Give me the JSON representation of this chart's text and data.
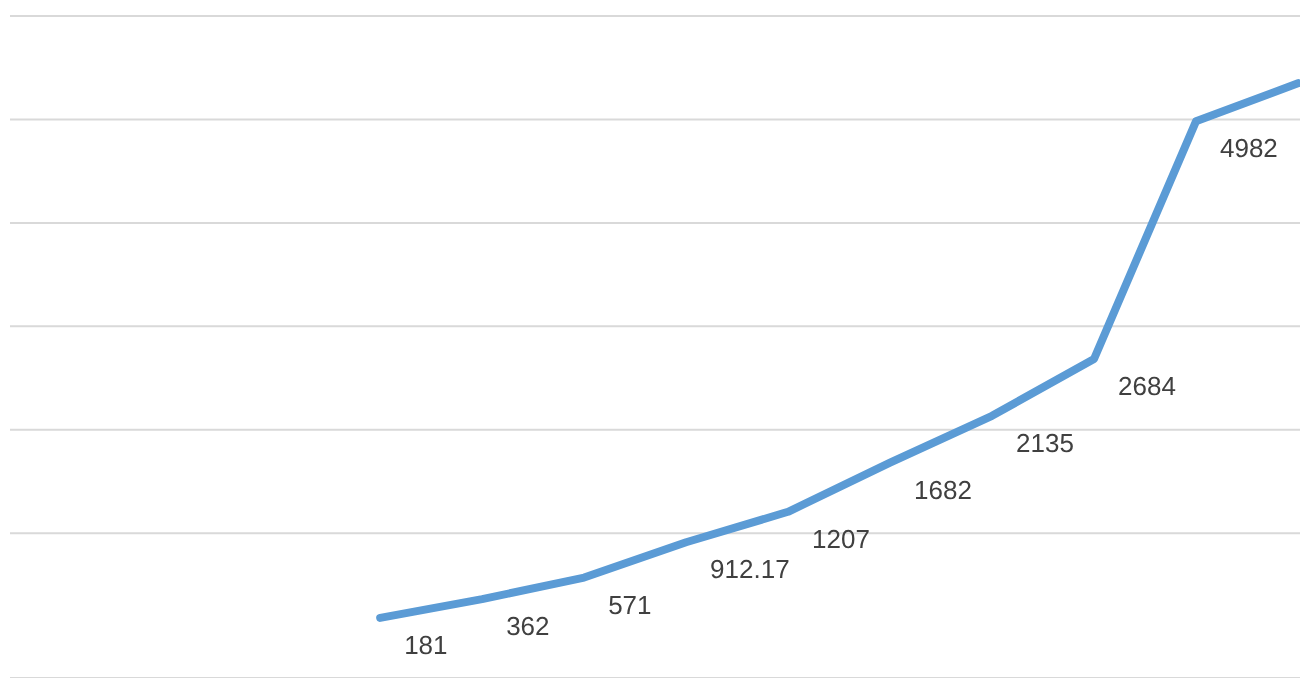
{
  "chart_data": {
    "type": "line",
    "categories": [
      null,
      null,
      null,
      null,
      null,
      null,
      null,
      null,
      null,
      null
    ],
    "series": [
      {
        "color": "#5b9bd5",
        "values": [
          181,
          362,
          571,
          912.17,
          1207,
          1682,
          2135,
          2684,
          4982,
          5350
        ],
        "value_labels": [
          "181",
          "362",
          "571",
          "912.17",
          "1207",
          "1682",
          "2135",
          "2684",
          "4982",
          null
        ]
      }
    ],
    "ylim": [
      -400,
      6000
    ],
    "yticks": [
      {
        "value": 1000,
        "label": null
      },
      {
        "value": 2000,
        "label": null
      },
      {
        "value": 3000,
        "label": null
      },
      {
        "value": 4000,
        "label": null
      },
      {
        "value": 5000,
        "label": null
      },
      {
        "value": 6000,
        "label": null
      }
    ],
    "grid": "y",
    "marker": "none",
    "line_style": "solid"
  }
}
